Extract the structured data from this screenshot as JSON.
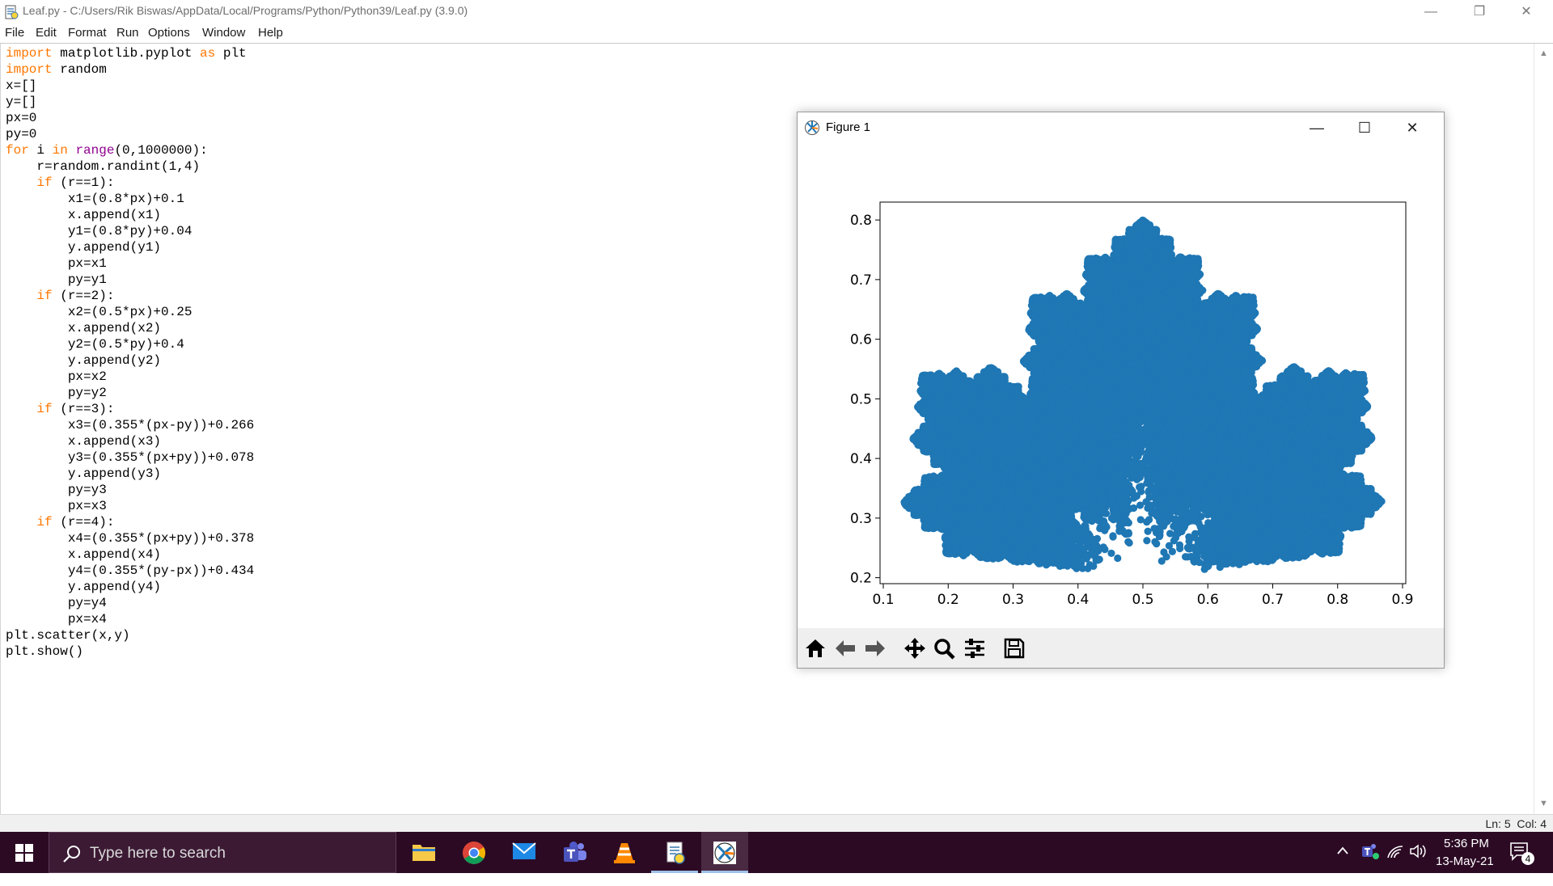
{
  "window": {
    "title": "Leaf.py - C:/Users/Rik Biswas/AppData/Local/Programs/Python/Python39/Leaf.py (3.9.0)",
    "min_glyph": "—",
    "max_glyph": "❐",
    "close_glyph": "✕"
  },
  "menu": [
    "File",
    "Edit",
    "Format",
    "Run",
    "Options",
    "Window",
    "Help"
  ],
  "code_lines": [
    [
      [
        "k",
        "import"
      ],
      [
        "t",
        " matplotlib.pyplot "
      ],
      [
        "k",
        "as"
      ],
      [
        "t",
        " plt"
      ]
    ],
    [
      [
        "k",
        "import"
      ],
      [
        "t",
        " random"
      ]
    ],
    [
      [
        "t",
        "x=[]"
      ]
    ],
    [
      [
        "t",
        "y=[]"
      ]
    ],
    [
      [
        "t",
        "px=0"
      ]
    ],
    [
      [
        "t",
        "py=0"
      ]
    ],
    [
      [
        "k",
        "for"
      ],
      [
        "t",
        " i "
      ],
      [
        "k",
        "in"
      ],
      [
        "t",
        " "
      ],
      [
        "b",
        "range"
      ],
      [
        "t",
        "(0,1000000):"
      ]
    ],
    [
      [
        "t",
        "    r=random.randint(1,4)"
      ]
    ],
    [
      [
        "t",
        "    "
      ],
      [
        "k",
        "if"
      ],
      [
        "t",
        " (r==1):"
      ]
    ],
    [
      [
        "t",
        "        x1=(0.8*px)+0.1"
      ]
    ],
    [
      [
        "t",
        "        x.append(x1)"
      ]
    ],
    [
      [
        "t",
        "        y1=(0.8*py)+0.04"
      ]
    ],
    [
      [
        "t",
        "        y.append(y1)"
      ]
    ],
    [
      [
        "t",
        "        px=x1"
      ]
    ],
    [
      [
        "t",
        "        py=y1"
      ]
    ],
    [
      [
        "t",
        "    "
      ],
      [
        "k",
        "if"
      ],
      [
        "t",
        " (r==2):"
      ]
    ],
    [
      [
        "t",
        "        x2=(0.5*px)+0.25"
      ]
    ],
    [
      [
        "t",
        "        x.append(x2)"
      ]
    ],
    [
      [
        "t",
        "        y2=(0.5*py)+0.4"
      ]
    ],
    [
      [
        "t",
        "        y.append(y2)"
      ]
    ],
    [
      [
        "t",
        "        px=x2"
      ]
    ],
    [
      [
        "t",
        "        py=y2"
      ]
    ],
    [
      [
        "t",
        "    "
      ],
      [
        "k",
        "if"
      ],
      [
        "t",
        " (r==3):"
      ]
    ],
    [
      [
        "t",
        "        x3=(0.355*(px-py))+0.266"
      ]
    ],
    [
      [
        "t",
        "        x.append(x3)"
      ]
    ],
    [
      [
        "t",
        "        y3=(0.355*(px+py))+0.078"
      ]
    ],
    [
      [
        "t",
        "        y.append(y3)"
      ]
    ],
    [
      [
        "t",
        "        py=y3"
      ]
    ],
    [
      [
        "t",
        "        px=x3"
      ]
    ],
    [
      [
        "t",
        "    "
      ],
      [
        "k",
        "if"
      ],
      [
        "t",
        " (r==4):"
      ]
    ],
    [
      [
        "t",
        "        x4=(0.355*(px+py))+0.378"
      ]
    ],
    [
      [
        "t",
        "        x.append(x4)"
      ]
    ],
    [
      [
        "t",
        "        y4=(0.355*(py-px))+0.434"
      ]
    ],
    [
      [
        "t",
        "        y.append(y4)"
      ]
    ],
    [
      [
        "t",
        "        py=y4"
      ]
    ],
    [
      [
        "t",
        "        px=x4"
      ]
    ],
    [
      [
        "t",
        "plt.scatter(x,y)"
      ]
    ],
    [
      [
        "t",
        "plt.show()"
      ]
    ]
  ],
  "status": {
    "line": "Ln: 5",
    "col": "Col: 4"
  },
  "figure": {
    "title": "Figure 1",
    "min_glyph": "—",
    "max_glyph": "☐",
    "close_glyph": "✕"
  },
  "chart_data": {
    "type": "scatter",
    "title": "",
    "xlabel": "",
    "ylabel": "",
    "xlim": [
      0.095,
      0.905
    ],
    "ylim": [
      0.19,
      0.83
    ],
    "xticks": [
      "0.1",
      "0.2",
      "0.3",
      "0.4",
      "0.5",
      "0.6",
      "0.7",
      "0.8",
      "0.9"
    ],
    "yticks": [
      "0.2",
      "0.3",
      "0.4",
      "0.5",
      "0.6",
      "0.7",
      "0.8"
    ],
    "marker_color": "#1f77b4",
    "grid": false,
    "series": [
      {
        "generator": {
          "iterations": 1000000,
          "maps": [
            {
              "x": [
                0.8,
                0,
                0.1
              ],
              "y": [
                0,
                0.8,
                0.04
              ]
            },
            {
              "x": [
                0.5,
                0,
                0.25
              ],
              "y": [
                0,
                0.5,
                0.4
              ]
            },
            {
              "x": [
                0.355,
                -0.355,
                0.266
              ],
              "y": [
                0.355,
                0.355,
                0.078
              ]
            },
            {
              "x": [
                0.355,
                0.355,
                0.378
              ],
              "y": [
                -0.355,
                0.355,
                0.434
              ]
            }
          ]
        }
      }
    ]
  },
  "taskbar": {
    "search_placeholder": "Type here to search",
    "time": "5:36 PM",
    "date": "13-May-21",
    "notification_count": "4"
  }
}
